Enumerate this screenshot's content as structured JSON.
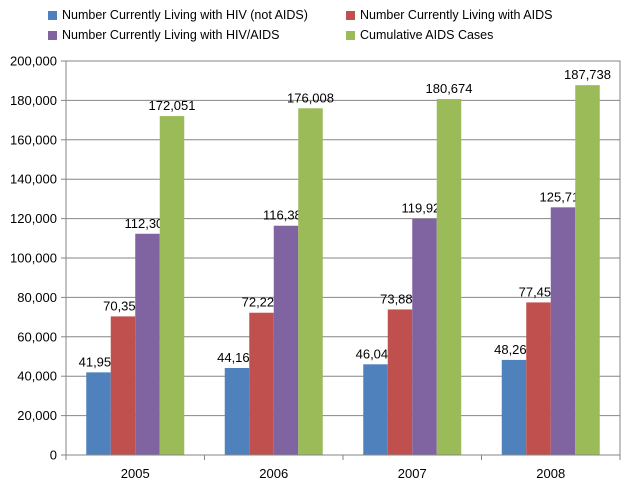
{
  "chart_data": {
    "type": "bar",
    "categories": [
      "2005",
      "2006",
      "2007",
      "2008"
    ],
    "series": [
      {
        "name": "Number Currently Living with HIV (not AIDS)",
        "color": "#4f81bd",
        "values": [
          41955,
          44164,
          46040,
          48266
        ],
        "labels": [
          "41,955",
          "44,164",
          "46,040",
          "48,266"
        ]
      },
      {
        "name": "Number Currently Living with AIDS",
        "color": "#c0504d",
        "values": [
          70353,
          72220,
          73889,
          77452
        ],
        "labels": [
          "70,353",
          "72,220",
          "73,889",
          "77,452"
        ]
      },
      {
        "name": "Number Currently Living with HIV/AIDS",
        "color": "#8064a2",
        "values": [
          112308,
          116384,
          119929,
          125718
        ],
        "labels": [
          "112,308",
          "116,384",
          "119,929",
          "125,718"
        ]
      },
      {
        "name": "Cumulative AIDS Cases",
        "color": "#9bbb59",
        "values": [
          172051,
          176008,
          180674,
          187738
        ],
        "labels": [
          "172,051",
          "176,008",
          "180,674",
          "187,738"
        ]
      }
    ],
    "ylim": [
      0,
      200000
    ],
    "yticks": [
      0,
      20000,
      40000,
      60000,
      80000,
      100000,
      120000,
      140000,
      160000,
      180000,
      200000
    ],
    "ytick_labels": [
      "0",
      "20,000",
      "40,000",
      "60,000",
      "80,000",
      "100,000",
      "120,000",
      "140,000",
      "160,000",
      "180,000",
      "200,000"
    ],
    "grid": true,
    "legend_position": "top"
  }
}
